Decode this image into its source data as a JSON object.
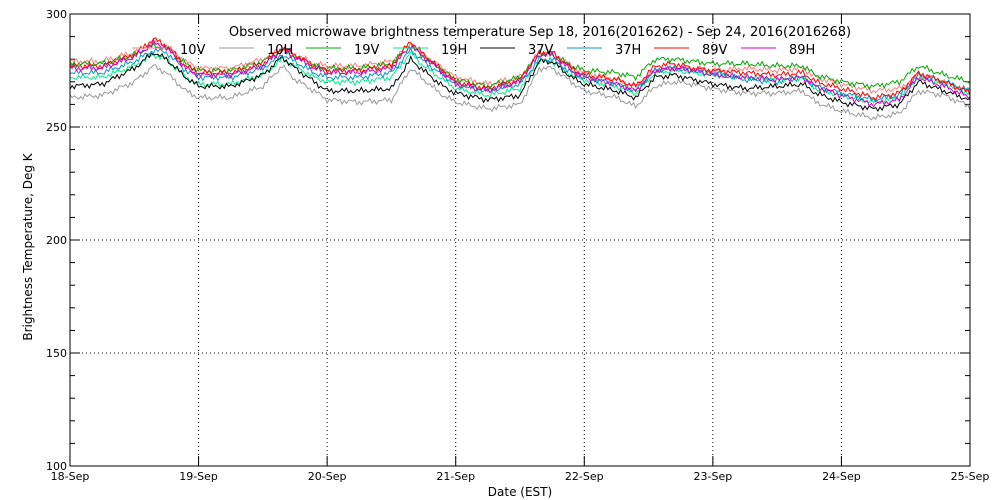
{
  "chart_data": {
    "type": "line",
    "title": "Observed microwave brightness temperature Sep 18, 2016(2016262) - Sep 24, 2016(2016268)",
    "xlabel": "Date (EST)",
    "ylabel": "Brightness Temperature, Deg K",
    "ylim": [
      100,
      300
    ],
    "xlim": [
      0,
      7
    ],
    "y_ticks": [
      100,
      150,
      200,
      250,
      300
    ],
    "x_tick_labels": [
      "18-Sep",
      "19-Sep",
      "20-Sep",
      "21-Sep",
      "22-Sep",
      "23-Sep",
      "24-Sep",
      "25-Sep"
    ],
    "grid": true,
    "legend_position": "top",
    "x": [
      0,
      0.25,
      0.5,
      0.65,
      0.75,
      0.9,
      1.0,
      1.25,
      1.5,
      1.65,
      1.75,
      1.9,
      2.0,
      2.25,
      2.5,
      2.65,
      2.75,
      2.9,
      3.0,
      3.25,
      3.5,
      3.65,
      3.75,
      3.9,
      4.0,
      4.25,
      4.4,
      4.55,
      4.7,
      4.85,
      5.0,
      5.25,
      5.5,
      5.7,
      5.8,
      6.0,
      6.25,
      6.45,
      6.6,
      6.8,
      7.0
    ],
    "series": [
      {
        "name": "10V",
        "color": "#ff7f7f",
        "values": [
          279,
          279,
          283,
          287,
          286,
          279,
          276,
          276,
          280,
          285,
          282,
          278,
          277,
          277,
          279,
          287,
          282,
          276,
          272,
          269,
          272,
          283,
          283,
          277,
          274,
          271,
          268,
          275,
          276,
          276,
          275,
          276,
          275,
          276,
          272,
          269,
          266,
          267,
          273,
          270,
          266
        ]
      },
      {
        "name": "10H",
        "color": "#999999",
        "values": [
          263,
          264,
          270,
          277,
          274,
          266,
          263,
          263,
          268,
          277,
          271,
          266,
          262,
          261,
          262,
          276,
          271,
          264,
          261,
          258,
          260,
          276,
          276,
          270,
          266,
          263,
          259,
          268,
          270,
          269,
          267,
          265,
          265,
          266,
          261,
          257,
          254,
          256,
          266,
          264,
          259
        ]
      },
      {
        "name": "19V",
        "color": "#00aa00",
        "values": [
          278,
          278,
          282,
          286,
          285,
          278,
          275,
          275,
          279,
          284,
          281,
          277,
          276,
          276,
          278,
          286,
          281,
          275,
          271,
          268,
          272,
          282,
          282,
          277,
          275,
          274,
          272,
          280,
          280,
          279,
          278,
          278,
          277,
          277,
          273,
          270,
          268,
          270,
          277,
          273,
          270
        ]
      },
      {
        "name": "19H",
        "color": "#00ee88",
        "values": [
          272,
          272,
          277,
          282,
          280,
          272,
          269,
          269,
          273,
          280,
          277,
          272,
          270,
          270,
          272,
          283,
          277,
          271,
          267,
          264,
          267,
          279,
          279,
          273,
          271,
          268,
          265,
          274,
          275,
          274,
          273,
          272,
          271,
          272,
          267,
          264,
          261,
          263,
          272,
          269,
          265
        ]
      },
      {
        "name": "37V",
        "color": "#000000",
        "values": [
          268,
          269,
          276,
          283,
          280,
          272,
          268,
          268,
          273,
          281,
          276,
          270,
          266,
          266,
          267,
          280,
          275,
          268,
          265,
          262,
          264,
          279,
          279,
          272,
          269,
          266,
          263,
          272,
          273,
          271,
          269,
          267,
          268,
          269,
          265,
          261,
          258,
          260,
          270,
          266,
          262
        ]
      },
      {
        "name": "37H",
        "color": "#0099cc",
        "values": [
          274,
          274,
          279,
          284,
          283,
          275,
          272,
          272,
          276,
          282,
          279,
          274,
          272,
          272,
          274,
          284,
          279,
          273,
          269,
          266,
          269,
          280,
          280,
          274,
          272,
          269,
          266,
          275,
          276,
          275,
          274,
          271,
          270,
          272,
          268,
          265,
          262,
          264,
          273,
          270,
          266
        ]
      },
      {
        "name": "89V",
        "color": "#ff0000",
        "values": [
          277,
          277,
          282,
          289,
          286,
          277,
          274,
          274,
          278,
          285,
          282,
          277,
          275,
          275,
          277,
          288,
          282,
          275,
          270,
          267,
          271,
          283,
          283,
          276,
          273,
          271,
          268,
          277,
          278,
          276,
          275,
          274,
          273,
          274,
          270,
          267,
          263,
          265,
          274,
          270,
          265
        ]
      },
      {
        "name": "89H",
        "color": "#cc00cc",
        "values": [
          276,
          276,
          281,
          287,
          285,
          276,
          273,
          273,
          277,
          284,
          281,
          276,
          274,
          274,
          276,
          286,
          281,
          274,
          269,
          266,
          270,
          282,
          282,
          275,
          272,
          269,
          266,
          275,
          276,
          275,
          273,
          272,
          271,
          272,
          268,
          264,
          260,
          262,
          272,
          268,
          263
        ]
      }
    ]
  }
}
